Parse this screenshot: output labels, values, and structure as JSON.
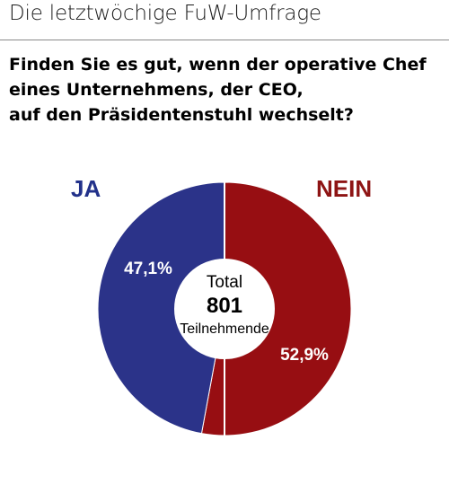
{
  "header": {
    "kicker": "Die letztwöchige FuW-Umfrage",
    "question_lines": [
      "Finden Sie es gut, wenn der operative Chef",
      "eines Unternehmens, der CEO,",
      "auf den Präsidentenstuhl wechselt?"
    ]
  },
  "chart_data": {
    "type": "pie",
    "categories": [
      "JA",
      "NEIN"
    ],
    "values": [
      47.1,
      52.9
    ],
    "value_labels": [
      "47,1%",
      "52,9%"
    ],
    "colors": [
      "#2b3389",
      "#970e12"
    ],
    "center": {
      "label_top": "Total",
      "value": "801",
      "label_bottom": "Teilnehmende"
    }
  }
}
